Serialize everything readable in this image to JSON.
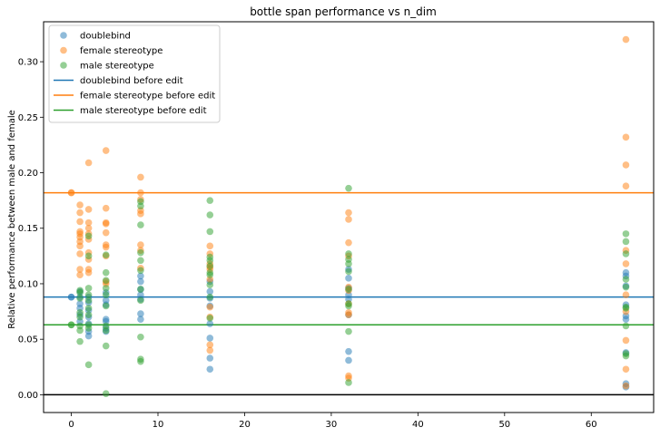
{
  "chart_data": {
    "type": "scatter",
    "title": "bottle span performance vs n_dim",
    "xlabel": "",
    "ylabel": "Relative performance between male and female",
    "xlim": [
      -3.2,
      67.2
    ],
    "ylim": [
      -0.016,
      0.336
    ],
    "xticks": [
      0,
      10,
      20,
      30,
      40,
      50,
      60
    ],
    "yticks": [
      0.0,
      0.05,
      0.1,
      0.15,
      0.2,
      0.25,
      0.3
    ],
    "ytick_labels": [
      "0.00",
      "0.05",
      "0.10",
      "0.15",
      "0.20",
      "0.25",
      "0.30"
    ],
    "grid": false,
    "legend_placement": "top-left",
    "series": [
      {
        "name": "doublebind",
        "color": "#1f77b4",
        "points": [
          [
            0,
            0.088
          ],
          [
            0,
            0.088
          ],
          [
            1,
            0.093
          ],
          [
            1,
            0.088
          ],
          [
            1,
            0.082
          ],
          [
            1,
            0.078
          ],
          [
            1,
            0.072
          ],
          [
            1,
            0.066
          ],
          [
            2,
            0.088
          ],
          [
            2,
            0.083
          ],
          [
            2,
            0.076
          ],
          [
            2,
            0.07
          ],
          [
            2,
            0.064
          ],
          [
            2,
            0.057
          ],
          [
            2,
            0.053
          ],
          [
            4,
            0.092
          ],
          [
            4,
            0.085
          ],
          [
            4,
            0.081
          ],
          [
            4,
            0.068
          ],
          [
            4,
            0.066
          ],
          [
            4,
            0.06
          ],
          [
            4,
            0.057
          ],
          [
            8,
            0.107
          ],
          [
            8,
            0.102
          ],
          [
            8,
            0.095
          ],
          [
            8,
            0.09
          ],
          [
            8,
            0.086
          ],
          [
            8,
            0.073
          ],
          [
            8,
            0.068
          ],
          [
            16,
            0.102
          ],
          [
            16,
            0.093
          ],
          [
            16,
            0.087
          ],
          [
            16,
            0.08
          ],
          [
            16,
            0.064
          ],
          [
            16,
            0.051
          ],
          [
            16,
            0.033
          ],
          [
            16,
            0.023
          ],
          [
            32,
            0.113
          ],
          [
            32,
            0.105
          ],
          [
            32,
            0.096
          ],
          [
            32,
            0.09
          ],
          [
            32,
            0.086
          ],
          [
            32,
            0.072
          ],
          [
            32,
            0.039
          ],
          [
            32,
            0.031
          ],
          [
            64,
            0.11
          ],
          [
            64,
            0.107
          ],
          [
            64,
            0.098
          ],
          [
            64,
            0.081
          ],
          [
            64,
            0.071
          ],
          [
            64,
            0.068
          ],
          [
            64,
            0.038
          ],
          [
            64,
            0.01
          ],
          [
            64,
            0.007
          ]
        ]
      },
      {
        "name": "female stereotype",
        "color": "#ff7f0e",
        "points": [
          [
            0,
            0.182
          ],
          [
            0,
            0.182
          ],
          [
            1,
            0.171
          ],
          [
            1,
            0.164
          ],
          [
            1,
            0.156
          ],
          [
            1,
            0.147
          ],
          [
            1,
            0.145
          ],
          [
            1,
            0.142
          ],
          [
            1,
            0.138
          ],
          [
            1,
            0.134
          ],
          [
            1,
            0.127
          ],
          [
            1,
            0.113
          ],
          [
            1,
            0.108
          ],
          [
            2,
            0.209
          ],
          [
            2,
            0.167
          ],
          [
            2,
            0.155
          ],
          [
            2,
            0.15
          ],
          [
            2,
            0.145
          ],
          [
            2,
            0.14
          ],
          [
            2,
            0.128
          ],
          [
            2,
            0.122
          ],
          [
            2,
            0.113
          ],
          [
            2,
            0.11
          ],
          [
            4,
            0.22
          ],
          [
            4,
            0.168
          ],
          [
            4,
            0.155
          ],
          [
            4,
            0.154
          ],
          [
            4,
            0.146
          ],
          [
            4,
            0.135
          ],
          [
            4,
            0.133
          ],
          [
            4,
            0.125
          ],
          [
            4,
            0.102
          ],
          [
            4,
            0.1
          ],
          [
            8,
            0.196
          ],
          [
            8,
            0.182
          ],
          [
            8,
            0.176
          ],
          [
            8,
            0.166
          ],
          [
            8,
            0.163
          ],
          [
            8,
            0.135
          ],
          [
            8,
            0.13
          ],
          [
            8,
            0.114
          ],
          [
            16,
            0.134
          ],
          [
            16,
            0.127
          ],
          [
            16,
            0.118
          ],
          [
            16,
            0.115
          ],
          [
            16,
            0.113
          ],
          [
            16,
            0.104
          ],
          [
            16,
            0.079
          ],
          [
            16,
            0.07
          ],
          [
            16,
            0.045
          ],
          [
            16,
            0.04
          ],
          [
            32,
            0.164
          ],
          [
            32,
            0.158
          ],
          [
            32,
            0.137
          ],
          [
            32,
            0.125
          ],
          [
            32,
            0.097
          ],
          [
            32,
            0.094
          ],
          [
            32,
            0.082
          ],
          [
            32,
            0.074
          ],
          [
            32,
            0.072
          ],
          [
            32,
            0.017
          ],
          [
            32,
            0.015
          ],
          [
            64,
            0.32
          ],
          [
            64,
            0.232
          ],
          [
            64,
            0.207
          ],
          [
            64,
            0.188
          ],
          [
            64,
            0.13
          ],
          [
            64,
            0.118
          ],
          [
            64,
            0.09
          ],
          [
            64,
            0.075
          ],
          [
            64,
            0.049
          ],
          [
            64,
            0.023
          ],
          [
            64,
            0.008
          ]
        ]
      },
      {
        "name": "male stereotype",
        "color": "#2ca02c",
        "points": [
          [
            0,
            0.063
          ],
          [
            0,
            0.063
          ],
          [
            1,
            0.094
          ],
          [
            1,
            0.092
          ],
          [
            1,
            0.087
          ],
          [
            1,
            0.074
          ],
          [
            1,
            0.07
          ],
          [
            1,
            0.062
          ],
          [
            1,
            0.058
          ],
          [
            1,
            0.048
          ],
          [
            2,
            0.143
          ],
          [
            2,
            0.125
          ],
          [
            2,
            0.096
          ],
          [
            2,
            0.09
          ],
          [
            2,
            0.085
          ],
          [
            2,
            0.078
          ],
          [
            2,
            0.072
          ],
          [
            2,
            0.063
          ],
          [
            2,
            0.06
          ],
          [
            2,
            0.027
          ],
          [
            4,
            0.126
          ],
          [
            4,
            0.11
          ],
          [
            4,
            0.103
          ],
          [
            4,
            0.096
          ],
          [
            4,
            0.09
          ],
          [
            4,
            0.08
          ],
          [
            4,
            0.062
          ],
          [
            4,
            0.058
          ],
          [
            4,
            0.044
          ],
          [
            4,
            0.001
          ],
          [
            8,
            0.174
          ],
          [
            8,
            0.17
          ],
          [
            8,
            0.153
          ],
          [
            8,
            0.128
          ],
          [
            8,
            0.121
          ],
          [
            8,
            0.112
          ],
          [
            8,
            0.095
          ],
          [
            8,
            0.085
          ],
          [
            8,
            0.052
          ],
          [
            8,
            0.032
          ],
          [
            8,
            0.03
          ],
          [
            16,
            0.175
          ],
          [
            16,
            0.162
          ],
          [
            16,
            0.147
          ],
          [
            16,
            0.124
          ],
          [
            16,
            0.121
          ],
          [
            16,
            0.116
          ],
          [
            16,
            0.11
          ],
          [
            16,
            0.108
          ],
          [
            16,
            0.099
          ],
          [
            16,
            0.088
          ],
          [
            16,
            0.069
          ],
          [
            32,
            0.186
          ],
          [
            32,
            0.127
          ],
          [
            32,
            0.122
          ],
          [
            32,
            0.118
          ],
          [
            32,
            0.111
          ],
          [
            32,
            0.095
          ],
          [
            32,
            0.082
          ],
          [
            32,
            0.08
          ],
          [
            32,
            0.057
          ],
          [
            32,
            0.011
          ],
          [
            64,
            0.145
          ],
          [
            64,
            0.138
          ],
          [
            64,
            0.127
          ],
          [
            64,
            0.104
          ],
          [
            64,
            0.097
          ],
          [
            64,
            0.079
          ],
          [
            64,
            0.078
          ],
          [
            64,
            0.062
          ],
          [
            64,
            0.037
          ],
          [
            64,
            0.035
          ]
        ]
      }
    ],
    "reference_lines": [
      {
        "name": "doublebind before edit",
        "color": "#1f77b4",
        "y": 0.088
      },
      {
        "name": "female stereotype before edit",
        "color": "#ff7f0e",
        "y": 0.182
      },
      {
        "name": "male stereotype before edit",
        "color": "#2ca02c",
        "y": 0.063
      },
      {
        "name": "",
        "color": "#000000",
        "y": 0.0
      }
    ]
  }
}
